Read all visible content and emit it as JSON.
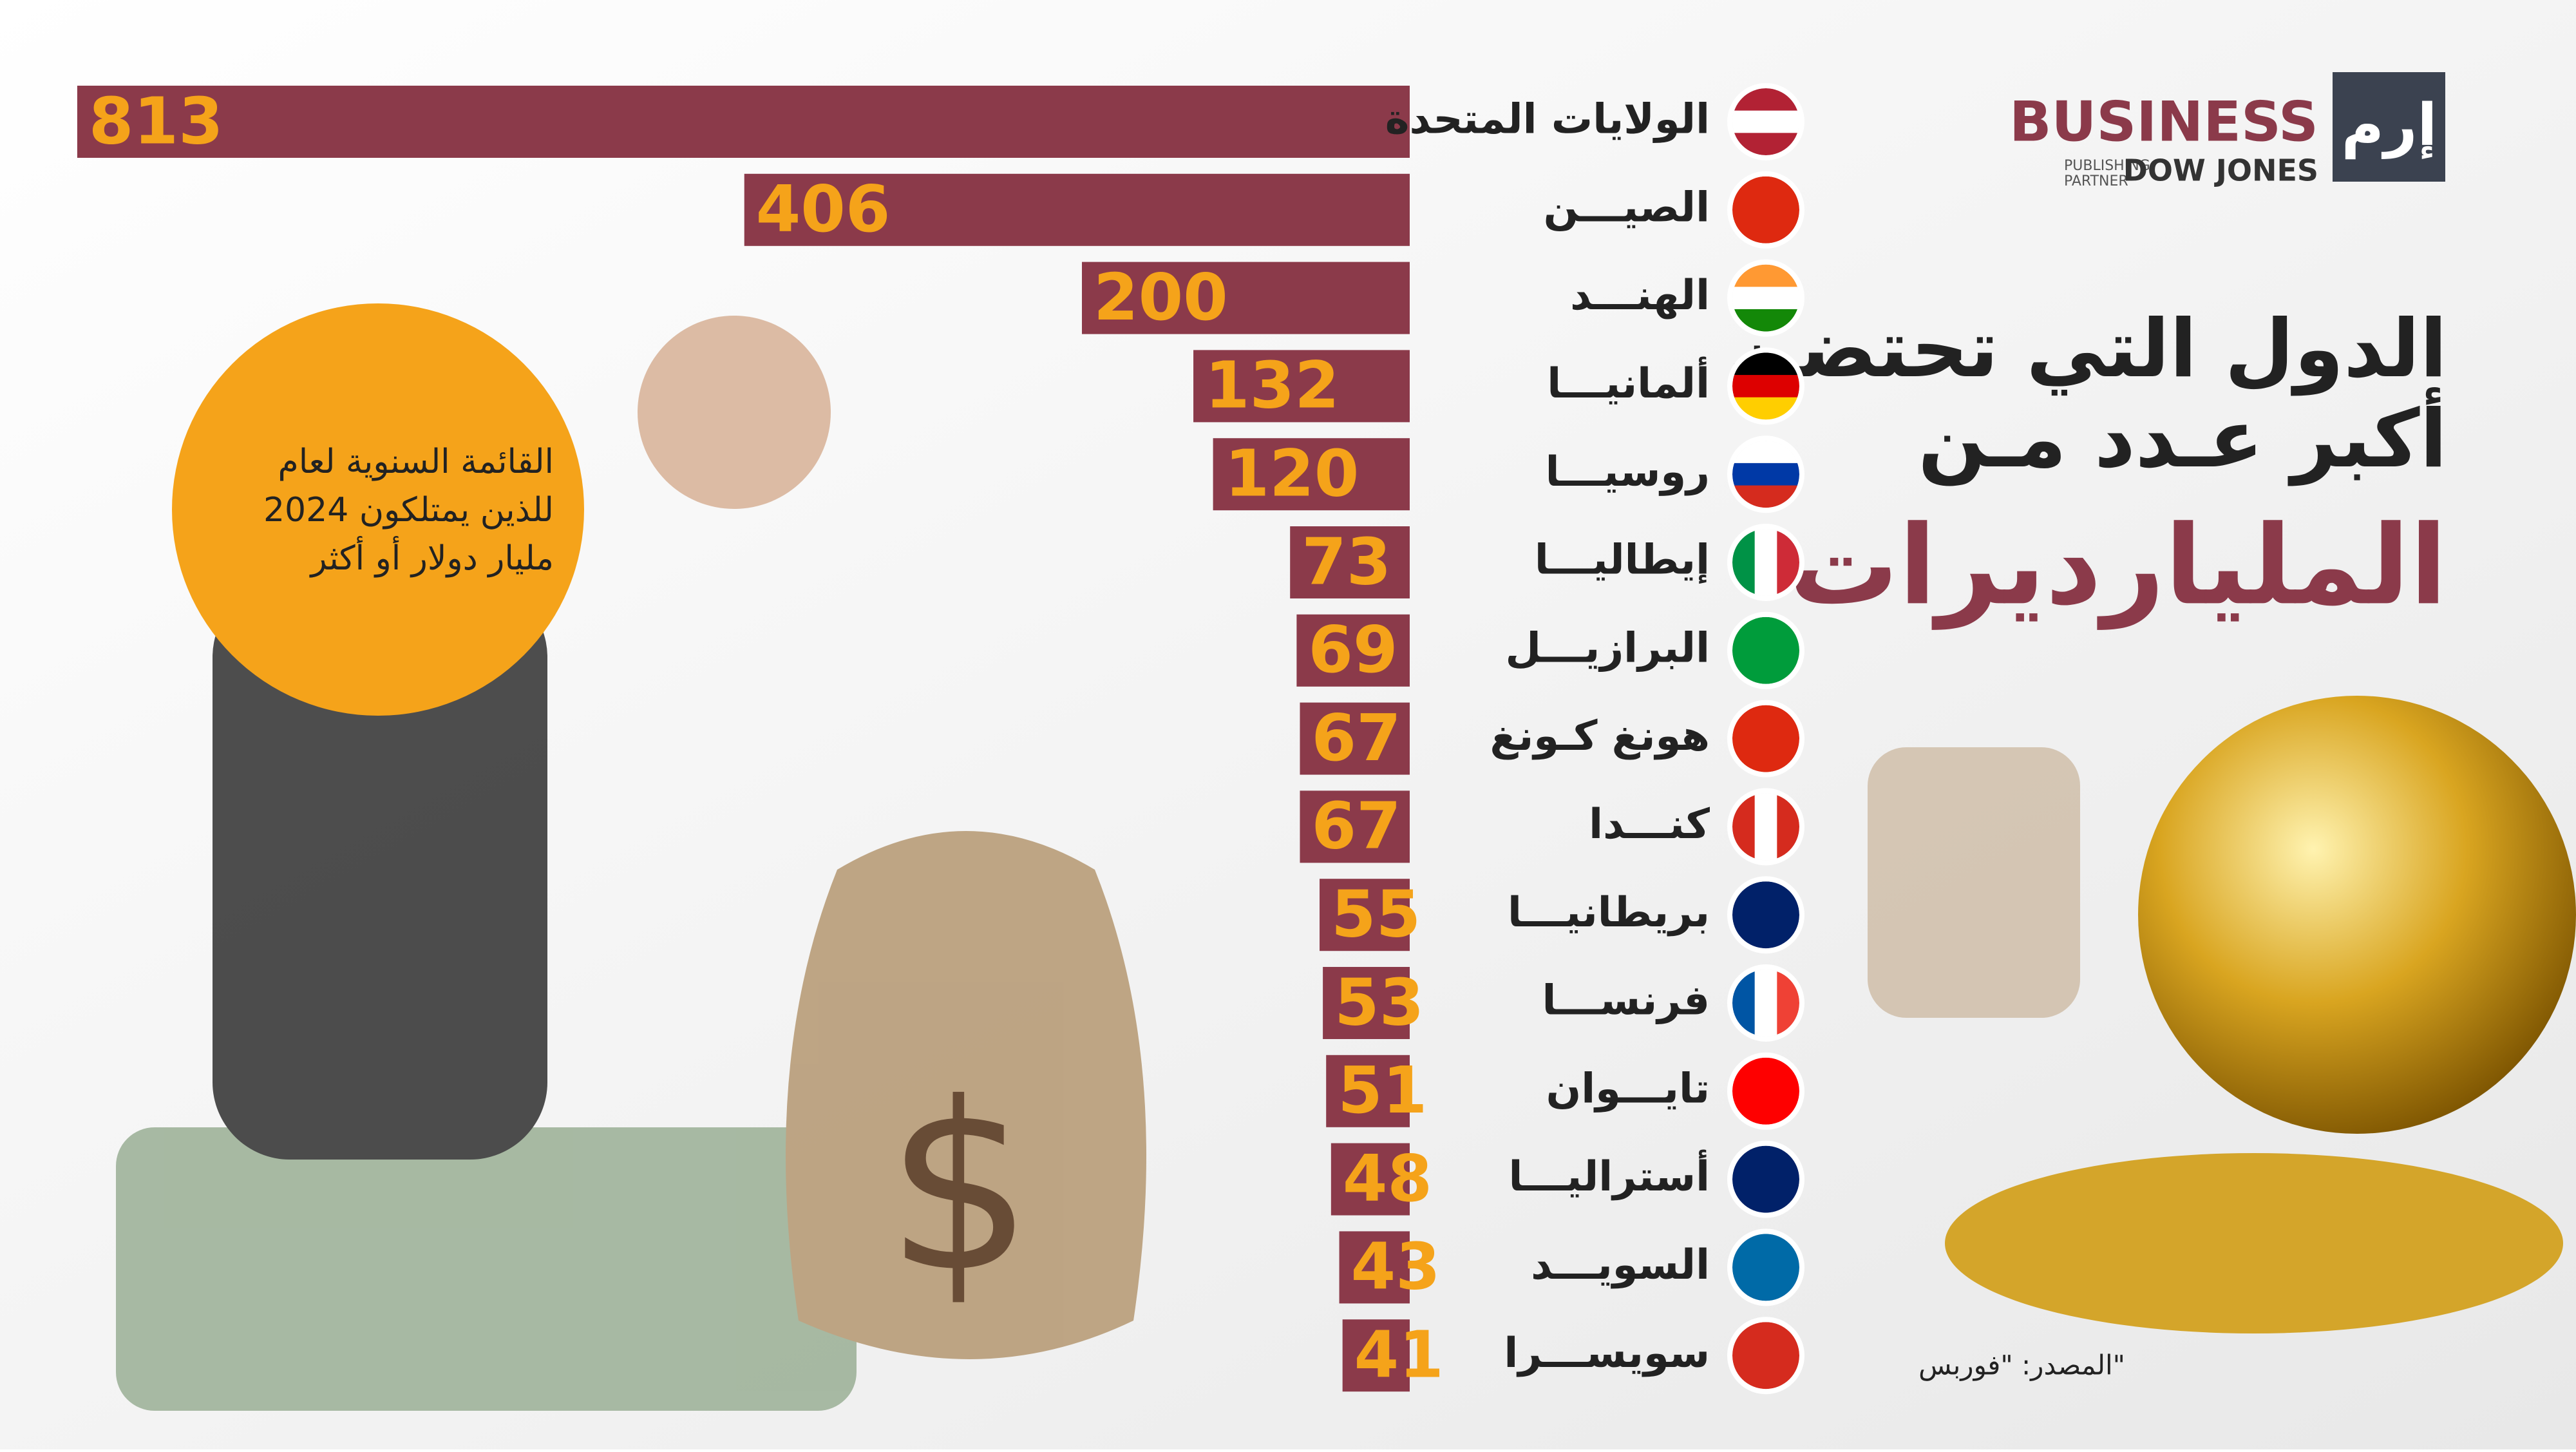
{
  "chart_data": {
    "type": "hbar",
    "title": [
      "الدول التي تحتضن",
      "أكبر عـدد مـن"
    ],
    "subtitle": "المليارديرات",
    "annotation": [
      "القائمة السنوية لعام",
      "2024 للذين يمتلكون",
      "مليار دولار أو أكثر"
    ],
    "source": "المصدر: \"فوربس\"",
    "categories": [
      "الولايات المتحدة",
      "الصيـــن",
      "الهنـــد",
      "ألمانيـــا",
      "روسيـــا",
      "إيطاليـــا",
      "البرازيـــل",
      "هونغ كـونغ",
      "كنـــدا",
      "بريطانيـــا",
      "فرنســـا",
      "تايـــوان",
      "أستراليـــا",
      "السويـــد",
      "سويســـرا"
    ],
    "values": [
      813,
      406,
      200,
      132,
      120,
      73,
      69,
      67,
      67,
      55,
      53,
      51,
      48,
      43,
      41
    ],
    "color": "#8b3a4a"
  },
  "logo": {
    "name": "BUSINESS",
    "partner": [
      "PUBLISHING",
      "PARTNER"
    ],
    "brand": "DOW JONES",
    "mark": "إرم"
  }
}
